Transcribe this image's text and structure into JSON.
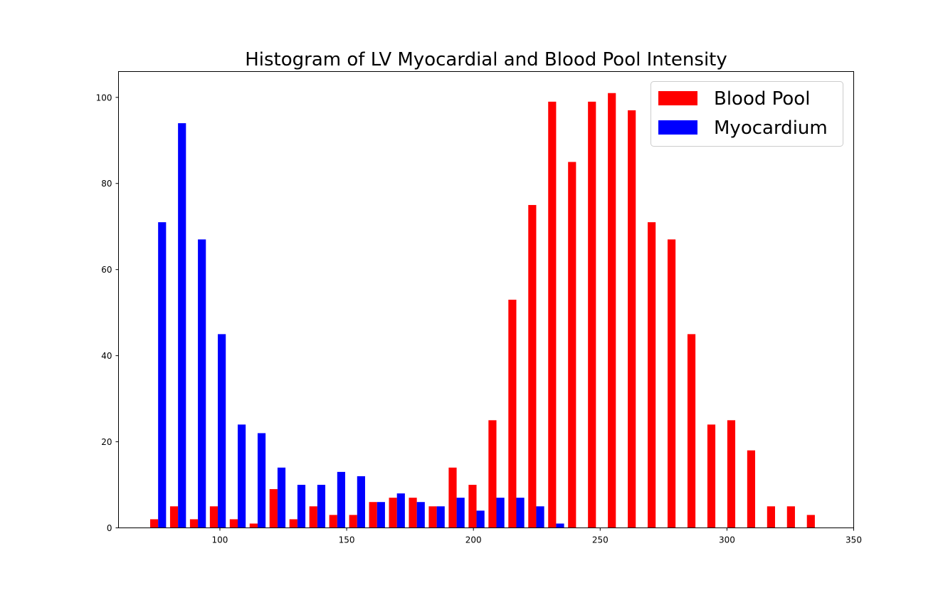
{
  "chart_data": {
    "type": "bar",
    "title": "Histogram of LV Myocardial and Blood Pool Intensity",
    "xlabel": "",
    "ylabel": "",
    "xlim": [
      60,
      350
    ],
    "ylim": [
      0,
      106
    ],
    "xticks": [
      100,
      150,
      200,
      250,
      300,
      350
    ],
    "yticks": [
      0,
      20,
      40,
      60,
      80,
      100
    ],
    "bin_start": 71.7,
    "bin_width": 7.85,
    "grid": false,
    "legend_position": "top-right",
    "series": [
      {
        "name": "Blood Pool",
        "color": "#ff0000",
        "values": [
          2,
          5,
          2,
          5,
          2,
          1,
          9,
          2,
          5,
          3,
          3,
          6,
          7,
          7,
          5,
          14,
          10,
          25,
          53,
          75,
          99,
          85,
          99,
          101,
          97,
          71,
          67,
          45,
          24,
          25,
          18,
          5,
          5,
          3
        ]
      },
      {
        "name": "Myocardium",
        "color": "#0000ff",
        "values": [
          71,
          94,
          67,
          45,
          24,
          22,
          14,
          10,
          10,
          13,
          12,
          6,
          8,
          6,
          5,
          7,
          4,
          7,
          7,
          5,
          1,
          0,
          0,
          0,
          0,
          0,
          0,
          0,
          0,
          0,
          0,
          0,
          0,
          0
        ]
      }
    ]
  }
}
